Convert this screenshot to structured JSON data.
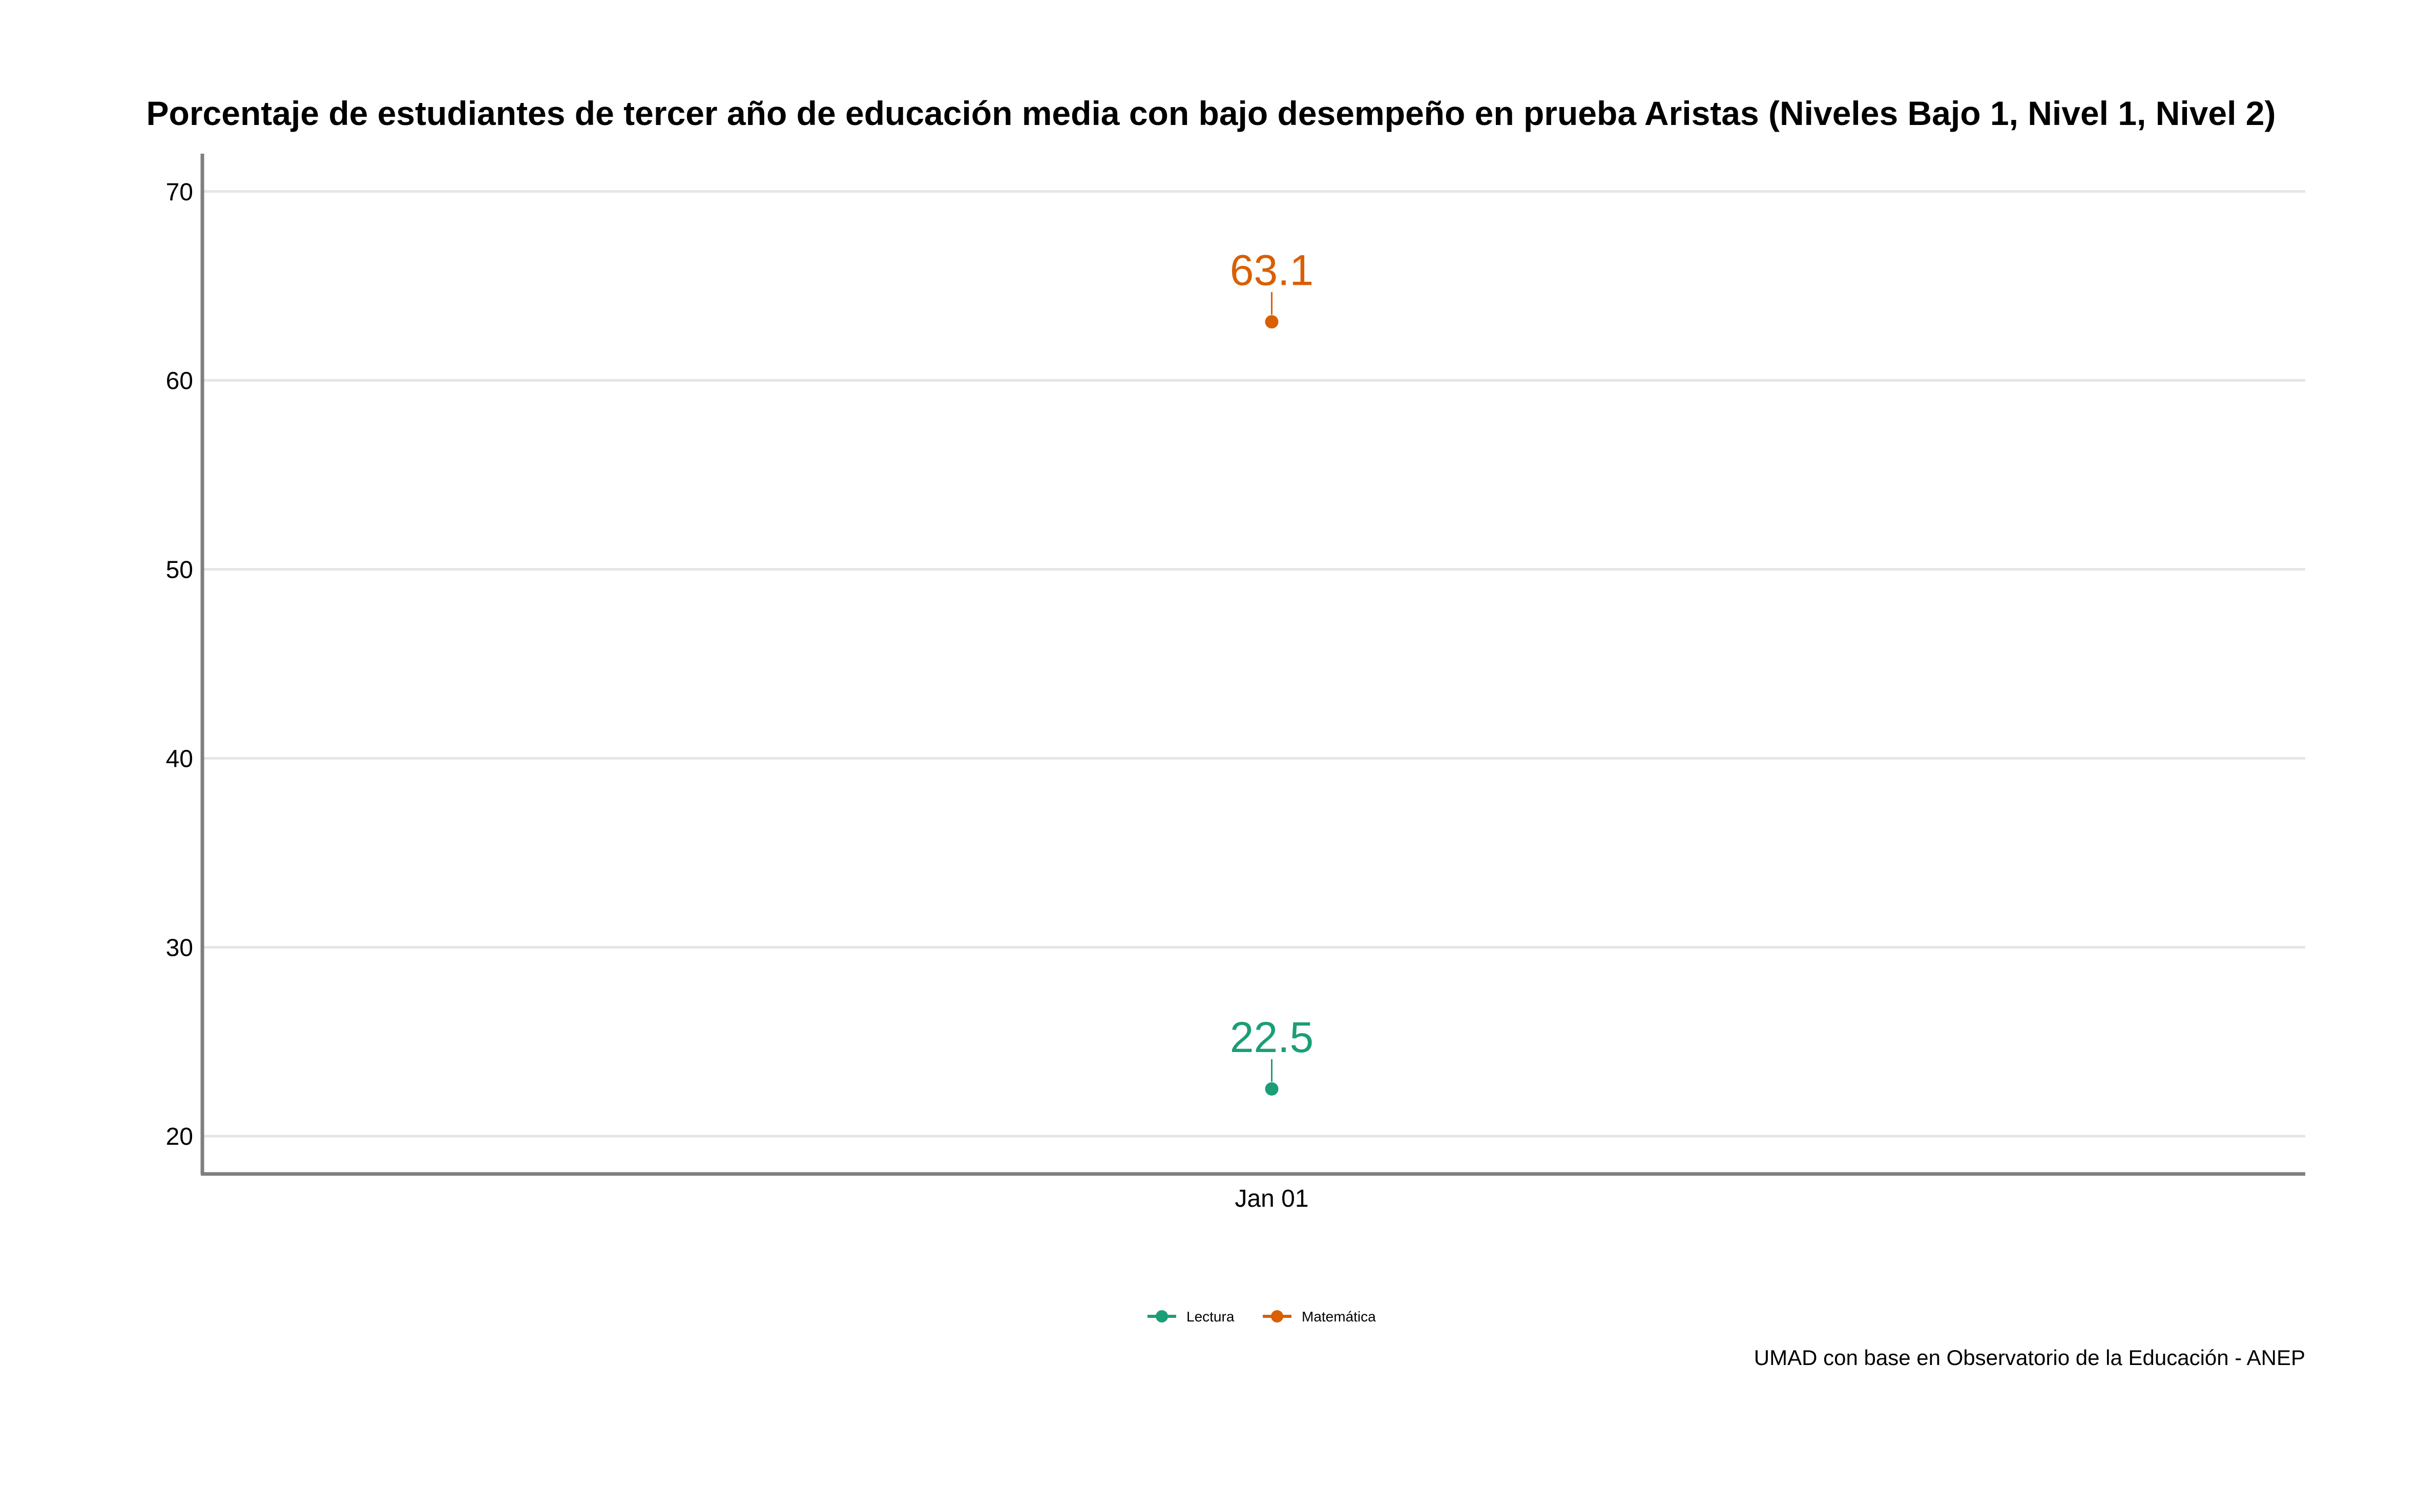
{
  "chart_data": {
    "type": "scatter",
    "title": "Porcentaje de estudiantes de tercer año de educación media con bajo desempeño en prueba Aristas (Niveles Bajo 1, Nivel 1, Nivel 2)",
    "xlabel": "",
    "ylabel": "",
    "categories": [
      "Jan 01"
    ],
    "ylim": [
      18,
      72
    ],
    "yticks": [
      20,
      30,
      40,
      50,
      60,
      70
    ],
    "grid": "horizontal",
    "legend_position": "bottom",
    "series": [
      {
        "name": "Lectura",
        "color": "#1b9e77",
        "values": [
          22.5
        ],
        "labels": [
          "22.5"
        ]
      },
      {
        "name": "Matemática",
        "color": "#d95f02",
        "values": [
          63.1
        ],
        "labels": [
          "63.1"
        ]
      }
    ],
    "caption": "UMAD con base en Observatorio de la Educación - ANEP"
  },
  "colors": {
    "axis": "#7f7f7f",
    "grid": "#e5e5e5"
  }
}
